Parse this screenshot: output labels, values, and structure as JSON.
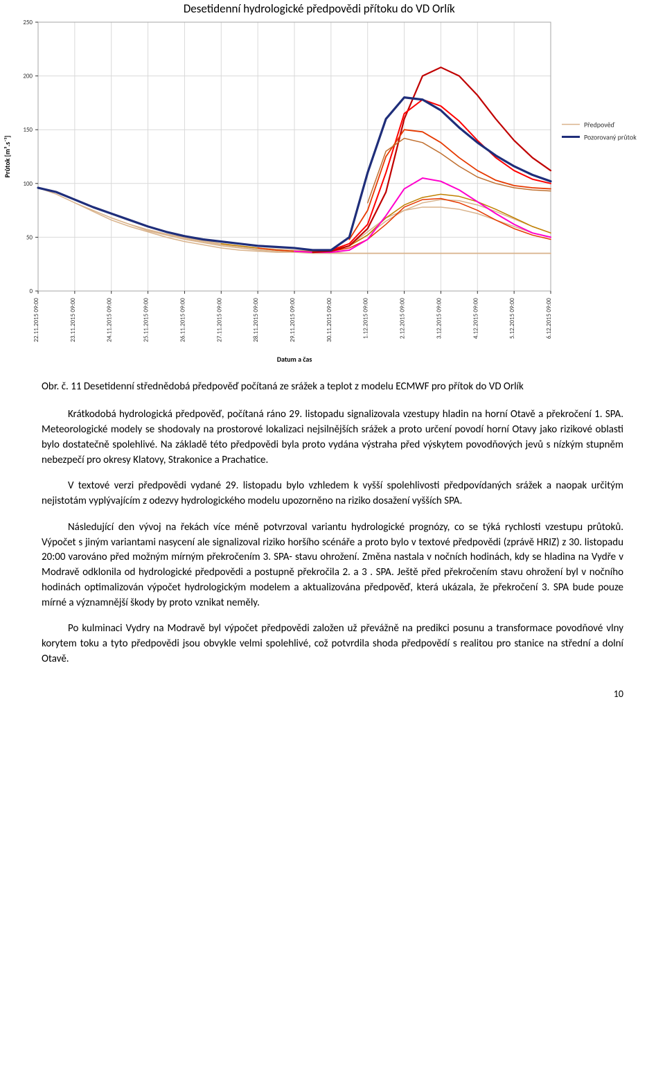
{
  "chart": {
    "type": "line",
    "title": "Desetidenní hydrologické předpovědi přítoku do VD Orlík",
    "title_fontsize": 17,
    "title_color": "#000000",
    "ylabel": "Průtok [m³.s⁻¹]",
    "ylabel_fontsize": 10,
    "xlabel": "Datum a čas",
    "xlabel_fontsize": 10,
    "background_color": "#ffffff",
    "plot_border_color": "#a6a6a6",
    "grid_color": "#d9d9d9",
    "x_categories": [
      "22.11.2015 09:00",
      "23.11.2015 09:00",
      "24.11.2015 09:00",
      "25.11.2015 09:00",
      "26.11.2015 09:00",
      "27.11.2015 09:00",
      "28.11.2015 09:00",
      "29.11.2015 09:00",
      "30.11.2015 09:00",
      "1.12.2015 09:00",
      "2.12.2015 09:00",
      "3.12.2015 09:00",
      "4.12.2015 09:00",
      "5.12.2015 09:00",
      "6.12.2015 09:00"
    ],
    "ylim": [
      0,
      250
    ],
    "ytick_step": 50,
    "tick_fontsize": 9,
    "legend": {
      "position": "right",
      "fontsize": 10,
      "items": [
        {
          "label": "Předpověď",
          "color": "#d9b38c",
          "stroke_width": 1.5
        },
        {
          "label": "Pozorovaný průtok",
          "color": "#1f2e7a",
          "stroke_width": 3
        }
      ]
    },
    "forecast_series": [
      {
        "color": "#d9b38c",
        "stroke_width": 1.5,
        "start_idx": 0,
        "values": [
          96,
          90,
          82,
          74,
          66,
          60,
          55,
          50,
          46,
          43,
          40,
          38,
          37,
          36,
          36,
          36,
          35,
          35,
          35,
          35,
          35,
          35,
          35,
          35,
          35,
          35,
          35,
          35,
          35
        ]
      },
      {
        "color": "#d9b38c",
        "stroke_width": 1.5,
        "start_idx": 2,
        "values": [
          82,
          75,
          68,
          62,
          56,
          52,
          48,
          45,
          42,
          40,
          38,
          37,
          36,
          35,
          35,
          35,
          35,
          35,
          35,
          35,
          35,
          35,
          35,
          35,
          35,
          35,
          35
        ]
      },
      {
        "color": "#d9b38c",
        "stroke_width": 1.5,
        "start_idx": 4,
        "values": [
          68,
          62,
          57,
          53,
          49,
          46,
          43,
          41,
          39,
          38,
          37,
          36,
          36,
          35,
          35,
          35,
          35,
          35,
          35,
          35,
          35,
          35,
          35,
          35,
          35
        ]
      },
      {
        "color": "#d9b38c",
        "stroke_width": 1.5,
        "start_idx": 6,
        "values": [
          57,
          53,
          50,
          47,
          44,
          42,
          40,
          38,
          37,
          37,
          38,
          42,
          55,
          68,
          75,
          78,
          78,
          76,
          72,
          66,
          60,
          54,
          50
        ]
      },
      {
        "color": "#d9b38c",
        "stroke_width": 1.5,
        "start_idx": 8,
        "values": [
          50,
          47,
          44,
          42,
          40,
          39,
          38,
          37,
          38,
          42,
          52,
          65,
          75,
          82,
          85,
          84,
          80,
          74,
          67,
          60,
          54
        ]
      },
      {
        "color": "#c08000",
        "stroke_width": 1.5,
        "start_idx": 10,
        "values": [
          44,
          42,
          40,
          38,
          37,
          37,
          38,
          42,
          52,
          68,
          80,
          87,
          90,
          88,
          83,
          76,
          68,
          60,
          54
        ]
      },
      {
        "color": "#e63900",
        "stroke_width": 1.5,
        "start_idx": 12,
        "values": [
          40,
          38,
          37,
          36,
          37,
          40,
          48,
          62,
          78,
          85,
          86,
          82,
          75,
          66,
          58,
          52,
          48
        ]
      },
      {
        "color": "#ff00cc",
        "stroke_width": 2,
        "start_idx": 14,
        "values": [
          37,
          36,
          36,
          38,
          48,
          70,
          95,
          105,
          102,
          94,
          83,
          72,
          62,
          54,
          50
        ]
      },
      {
        "color": "#c00000",
        "stroke_width": 2.2,
        "start_idx": 15,
        "values": [
          36,
          37,
          42,
          58,
          92,
          160,
          200,
          208,
          200,
          182,
          160,
          140,
          124,
          112,
          104,
          98,
          94,
          92,
          90,
          88,
          86
        ]
      },
      {
        "color": "#ff0000",
        "stroke_width": 2,
        "start_idx": 16,
        "values": [
          38,
          44,
          62,
          110,
          165,
          178,
          172,
          158,
          140,
          124,
          112,
          104,
          100,
          98,
          97,
          96,
          95,
          94,
          93
        ]
      },
      {
        "color": "#e63900",
        "stroke_width": 1.8,
        "start_idx": 17,
        "values": [
          48,
          75,
          125,
          150,
          148,
          138,
          124,
          112,
          103,
          98,
          96,
          95,
          94,
          94,
          93,
          92,
          91
        ]
      },
      {
        "color": "#c07030",
        "stroke_width": 1.5,
        "start_idx": 18,
        "values": [
          82,
          130,
          142,
          138,
          128,
          116,
          106,
          100,
          96,
          94,
          93,
          92,
          92,
          91,
          90,
          89
        ]
      }
    ],
    "observed_series": {
      "color": "#1f2e7a",
      "stroke_width": 3.2,
      "values": [
        96,
        92,
        85,
        78,
        72,
        66,
        60,
        55,
        51,
        48,
        46,
        44,
        42,
        41,
        40,
        38,
        38,
        50,
        110,
        160,
        180,
        178,
        168,
        152,
        138,
        126,
        116,
        108,
        102
      ]
    }
  },
  "caption": "Obr. č. 11 Desetidenní střednědobá předpověď počítaná ze srážek a teplot z modelu ECMWF pro přítok do VD Orlík",
  "paragraphs": [
    "Krátkodobá hydrologická předpověď, počítaná ráno 29. listopadu signalizovala vzestupy hladin na horní Otavě a překročení 1. SPA. Meteorologické modely se shodovaly na prostorové lokalizaci nejsilnějších srážek a proto určení povodí horní Otavy jako rizikové oblasti bylo dostatečně spolehlivé. Na základě této předpovědi byla proto vydána výstraha před výskytem povodňových jevů s nízkým stupněm nebezpečí pro okresy Klatovy, Strakonice a Prachatice.",
    "V textové verzi předpovědi vydané 29. listopadu bylo vzhledem k vyšší spolehlivosti předpovídaných srážek a naopak určitým nejistotám vyplývajícím z odezvy hydrologického modelu upozorněno na riziko dosažení vyšších SPA.",
    "Následující den vývoj na řekách více méně potvrzoval variantu hydrologické prognózy, co se týká rychlosti vzestupu průtoků. Výpočet s jiným variantami nasycení ale signalizoval riziko horšího scénáře a proto bylo v textové předpovědi (zprávě HRIZ) z 30. listopadu 20:00 varováno před možným mírným překročením 3. SPA- stavu ohrožení.  Změna nastala v nočních hodinách, kdy se hladina na Vydře v Modravě odklonila od hydrologické předpovědi a postupně překročila 2. a 3 . SPA. Ještě před překročením stavu ohrožení byl v nočního hodinách optimalizován výpočet hydrologickým modelem a aktualizována předpověď, která ukázala, že překročení 3. SPA bude pouze mírné a významnější škody by proto vznikat neměly.",
    "Po kulminaci Vydry na Modravě byl výpočet předpovědi založen už převážně na predikci posunu a transformace povodňové vlny korytem toku a tyto předpovědi jsou obvykle velmi spolehlivé, což potvrdila shoda předpovědí s realitou pro stanice na střední a dolní Otavě."
  ],
  "pagenum": "10"
}
